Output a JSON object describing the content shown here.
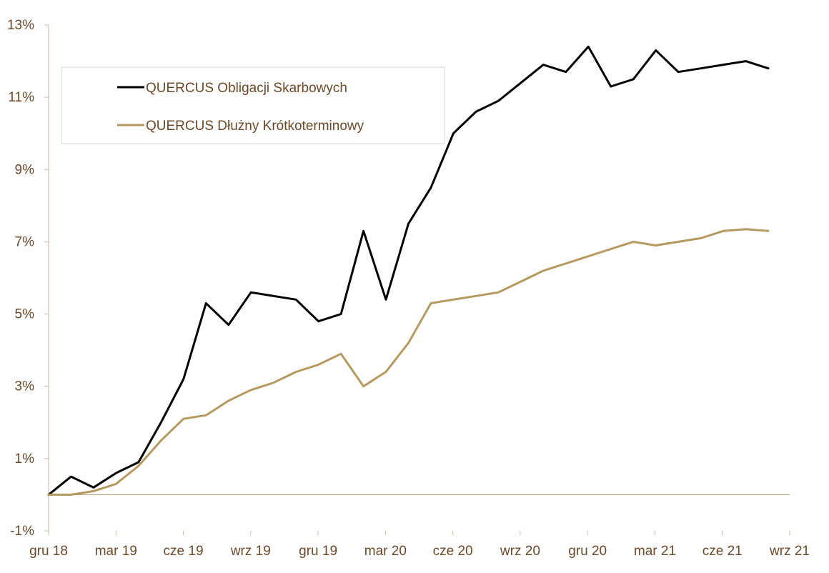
{
  "chart_data": {
    "type": "line",
    "title": "",
    "xlabel": "",
    "ylabel": "",
    "x_ticks": [
      "gru 18",
      "mar 19",
      "cze 19",
      "wrz 19",
      "gru 19",
      "mar 20",
      "cze 20",
      "wrz 20",
      "gru 20",
      "mar 21",
      "cze 21",
      "wrz 21"
    ],
    "x_range": [
      "gru 18",
      "wrz 21"
    ],
    "y_ticks": [
      "-1%",
      "1%",
      "3%",
      "5%",
      "7%",
      "9%",
      "11%",
      "13%"
    ],
    "ylim": [
      -1,
      13
    ],
    "y_unit": "%",
    "grid": false,
    "zero_line": true,
    "legend_position": "top-left",
    "x_points": [
      "gru 18",
      "sty 19",
      "lut 19",
      "mar 19",
      "kwi 19",
      "maj 19",
      "cze 19",
      "lip 19",
      "sie 19",
      "wrz 19",
      "paź 19",
      "lis 19",
      "gru 19",
      "sty 20",
      "lut 20",
      "mar 20",
      "kwi 20",
      "maj 20",
      "cze 20",
      "lip 20",
      "sie 20",
      "wrz 20",
      "paź 20",
      "lis 20",
      "gru 20",
      "sty 21",
      "lut 21",
      "mar 21",
      "kwi 21",
      "maj 21",
      "cze 21",
      "lip 21",
      "sie 21"
    ],
    "series": [
      {
        "name": "QUERCUS Obligacji Skarbowych",
        "color": "#000000",
        "values": [
          0.0,
          0.5,
          0.2,
          0.6,
          0.9,
          2.0,
          3.2,
          5.3,
          4.7,
          5.6,
          5.5,
          5.4,
          4.8,
          5.0,
          7.3,
          5.4,
          7.5,
          8.5,
          10.0,
          10.6,
          10.9,
          11.4,
          11.9,
          11.7,
          12.4,
          11.3,
          11.5,
          12.3,
          11.7,
          11.8,
          11.9,
          12.0,
          11.8
        ]
      },
      {
        "name": "QUERCUS Dłużny Krótkoterminowy",
        "color": "#b59a5f",
        "values": [
          0.0,
          0.0,
          0.1,
          0.3,
          0.8,
          1.5,
          2.1,
          2.2,
          2.6,
          2.9,
          3.1,
          3.4,
          3.6,
          3.9,
          3.0,
          3.4,
          4.2,
          5.3,
          5.4,
          5.5,
          5.6,
          5.9,
          6.2,
          6.4,
          6.6,
          6.8,
          7.0,
          6.9,
          7.0,
          7.1,
          7.3,
          7.35,
          7.3
        ]
      }
    ]
  }
}
